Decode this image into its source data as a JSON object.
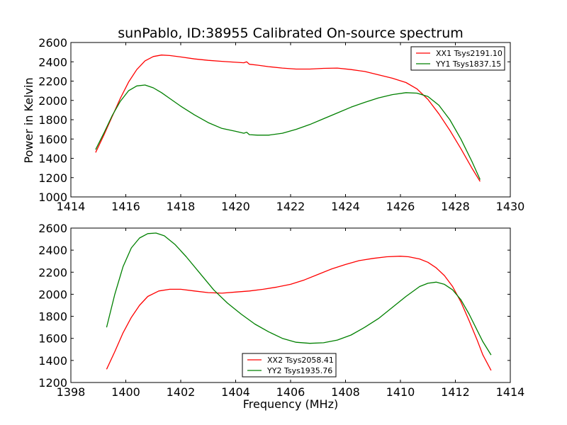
{
  "chart_data": [
    {
      "type": "line",
      "title": "sunPablo, ID:38955 Calibrated On-source spectrum",
      "xlabel": "",
      "ylabel": "Power in Kelvin",
      "xlim": [
        1414,
        1430
      ],
      "ylim": [
        1000,
        2600
      ],
      "x_ticks": [
        "1414",
        "1416",
        "1418",
        "1420",
        "1422",
        "1424",
        "1426",
        "1428",
        "1430"
      ],
      "y_ticks": [
        "1000",
        "1200",
        "1400",
        "1600",
        "1800",
        "2000",
        "2200",
        "2400",
        "2600"
      ],
      "legend_position": "top-right",
      "series": [
        {
          "name": "XX1 Tsys2191.10",
          "color": "#ff0000",
          "x": [
            1414.9,
            1415.2,
            1415.5,
            1415.8,
            1416.1,
            1416.4,
            1416.7,
            1417.0,
            1417.3,
            1417.6,
            1418.0,
            1418.5,
            1419.0,
            1419.5,
            1420.0,
            1420.3,
            1420.4,
            1420.5,
            1420.8,
            1421.2,
            1421.7,
            1422.2,
            1422.7,
            1423.2,
            1423.7,
            1424.2,
            1424.7,
            1425.2,
            1425.7,
            1426.2,
            1426.6,
            1427.0,
            1427.4,
            1427.8,
            1428.2,
            1428.6,
            1428.9
          ],
          "y": [
            1460,
            1640,
            1830,
            2020,
            2190,
            2320,
            2410,
            2455,
            2470,
            2465,
            2450,
            2430,
            2415,
            2405,
            2395,
            2390,
            2400,
            2375,
            2365,
            2350,
            2335,
            2325,
            2325,
            2332,
            2335,
            2320,
            2300,
            2265,
            2230,
            2185,
            2120,
            2010,
            1860,
            1690,
            1500,
            1300,
            1160
          ]
        },
        {
          "name": "YY1 Tsys1837.15",
          "color": "#008000",
          "x": [
            1414.9,
            1415.2,
            1415.5,
            1415.8,
            1416.1,
            1416.4,
            1416.7,
            1417.0,
            1417.3,
            1417.6,
            1418.0,
            1418.5,
            1419.0,
            1419.5,
            1420.0,
            1420.3,
            1420.4,
            1420.5,
            1420.8,
            1421.2,
            1421.7,
            1422.2,
            1422.7,
            1423.2,
            1423.7,
            1424.2,
            1424.7,
            1425.2,
            1425.7,
            1426.2,
            1426.6,
            1427.0,
            1427.4,
            1427.8,
            1428.2,
            1428.6,
            1428.9
          ],
          "y": [
            1490,
            1660,
            1840,
            1990,
            2100,
            2150,
            2160,
            2130,
            2080,
            2020,
            1940,
            1850,
            1770,
            1710,
            1680,
            1660,
            1670,
            1645,
            1640,
            1640,
            1660,
            1700,
            1750,
            1810,
            1870,
            1930,
            1980,
            2025,
            2060,
            2080,
            2075,
            2040,
            1950,
            1800,
            1600,
            1370,
            1180
          ]
        }
      ]
    },
    {
      "type": "line",
      "title": "",
      "xlabel": "Frequency (MHz)",
      "ylabel": "",
      "xlim": [
        1398,
        1414
      ],
      "ylim": [
        1200,
        2600
      ],
      "x_ticks": [
        "1398",
        "1400",
        "1402",
        "1404",
        "1406",
        "1408",
        "1410",
        "1412",
        "1414"
      ],
      "y_ticks": [
        "1200",
        "1400",
        "1600",
        "1800",
        "2000",
        "2200",
        "2400",
        "2600"
      ],
      "legend_position": "lower-center",
      "series": [
        {
          "name": "XX2 Tsys2058.41",
          "color": "#ff0000",
          "x": [
            1399.3,
            1399.6,
            1399.9,
            1400.2,
            1400.5,
            1400.8,
            1401.2,
            1401.6,
            1402.0,
            1402.5,
            1403.0,
            1403.5,
            1404.0,
            1404.5,
            1405.0,
            1405.5,
            1406.0,
            1406.5,
            1407.0,
            1407.5,
            1408.0,
            1408.5,
            1409.0,
            1409.5,
            1410.0,
            1410.3,
            1410.7,
            1411.0,
            1411.3,
            1411.6,
            1411.9,
            1412.2,
            1412.5,
            1412.8,
            1413.0,
            1413.3
          ],
          "y": [
            1320,
            1480,
            1650,
            1790,
            1900,
            1980,
            2030,
            2045,
            2045,
            2030,
            2015,
            2010,
            2020,
            2030,
            2045,
            2065,
            2090,
            2130,
            2180,
            2230,
            2270,
            2305,
            2325,
            2340,
            2345,
            2340,
            2320,
            2290,
            2240,
            2170,
            2070,
            1930,
            1760,
            1580,
            1450,
            1310
          ]
        },
        {
          "name": "YY2 Tsys1935.76",
          "color": "#008000",
          "x": [
            1399.3,
            1399.6,
            1399.9,
            1400.2,
            1400.5,
            1400.8,
            1401.1,
            1401.4,
            1401.8,
            1402.2,
            1402.7,
            1403.2,
            1403.7,
            1404.2,
            1404.7,
            1405.2,
            1405.7,
            1406.2,
            1406.7,
            1407.2,
            1407.7,
            1408.2,
            1408.7,
            1409.2,
            1409.7,
            1410.2,
            1410.7,
            1411.0,
            1411.3,
            1411.6,
            1411.9,
            1412.2,
            1412.5,
            1412.8,
            1413.0,
            1413.3
          ],
          "y": [
            1700,
            2000,
            2250,
            2420,
            2510,
            2550,
            2555,
            2530,
            2450,
            2340,
            2190,
            2040,
            1920,
            1820,
            1730,
            1660,
            1600,
            1565,
            1555,
            1560,
            1585,
            1630,
            1700,
            1780,
            1880,
            1980,
            2070,
            2100,
            2110,
            2090,
            2040,
            1950,
            1820,
            1670,
            1570,
            1450
          ]
        }
      ]
    }
  ]
}
